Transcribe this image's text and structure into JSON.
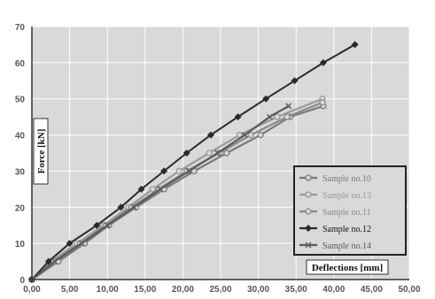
{
  "chart_data": {
    "type": "line",
    "xlabel": "Deflections [mm]",
    "ylabel": "Force [kN]",
    "xlim": [
      0,
      50
    ],
    "ylim": [
      0,
      70
    ],
    "x_ticks": [
      "0,00",
      "5,00",
      "10,00",
      "15,00",
      "20,00",
      "25,00",
      "30,00",
      "35,00",
      "40,00",
      "45,00",
      "50,00"
    ],
    "y_ticks": [
      "0",
      "10",
      "20",
      "30",
      "40",
      "50",
      "60",
      "70"
    ],
    "grid": true,
    "legend_position": "bottom-right",
    "plot_background": "#d9d9d9",
    "series": [
      {
        "name": "Sample no.10",
        "color": "#7a7a7a",
        "marker": "circle",
        "points": [
          [
            0,
            0
          ],
          [
            3.5,
            5
          ],
          [
            7,
            10
          ],
          [
            10.2,
            15
          ],
          [
            13.8,
            20
          ],
          [
            17.5,
            25
          ],
          [
            21.5,
            30
          ],
          [
            25.8,
            35
          ],
          [
            30.3,
            40
          ],
          [
            34.2,
            45
          ],
          [
            38.6,
            48
          ]
        ]
      },
      {
        "name": "Sample no.13",
        "color": "#9a9a9a",
        "marker": "circle",
        "points": [
          [
            0,
            0
          ],
          [
            2.5,
            5
          ],
          [
            6,
            10
          ],
          [
            9.5,
            15
          ],
          [
            12.8,
            20
          ],
          [
            16,
            25
          ],
          [
            19.5,
            30
          ],
          [
            23.5,
            35
          ],
          [
            27.5,
            40
          ],
          [
            32.5,
            45
          ],
          [
            38.5,
            50
          ]
        ]
      },
      {
        "name": "Sample no.11",
        "color": "#8a8a8a",
        "marker": "circle",
        "points": [
          [
            0,
            0
          ],
          [
            2.8,
            5
          ],
          [
            6.4,
            10
          ],
          [
            9.8,
            15
          ],
          [
            13.2,
            20
          ],
          [
            16.8,
            25
          ],
          [
            20.5,
            30
          ],
          [
            24.8,
            35
          ],
          [
            29,
            40
          ],
          [
            33.8,
            45
          ],
          [
            38.5,
            49
          ]
        ]
      },
      {
        "name": "Sample no.12",
        "color": "#2a2a2a",
        "marker": "diamond",
        "points": [
          [
            0,
            0
          ],
          [
            2.2,
            5
          ],
          [
            5,
            10
          ],
          [
            8.6,
            15
          ],
          [
            11.8,
            20
          ],
          [
            14.5,
            25
          ],
          [
            17.5,
            30
          ],
          [
            20.5,
            35
          ],
          [
            23.7,
            40
          ],
          [
            27.3,
            45
          ],
          [
            31,
            50
          ],
          [
            34.8,
            55
          ],
          [
            38.6,
            60
          ],
          [
            42.8,
            65
          ]
        ]
      },
      {
        "name": "Sample no.14",
        "color": "#5a5a5a",
        "marker": "x",
        "points": [
          [
            0,
            0
          ],
          [
            3,
            5
          ],
          [
            6.6,
            10
          ],
          [
            10,
            15
          ],
          [
            13.5,
            20
          ],
          [
            17,
            25
          ],
          [
            20.8,
            30
          ],
          [
            24.6,
            35
          ],
          [
            28.2,
            40
          ],
          [
            31.5,
            45
          ],
          [
            34,
            48
          ]
        ]
      }
    ]
  }
}
